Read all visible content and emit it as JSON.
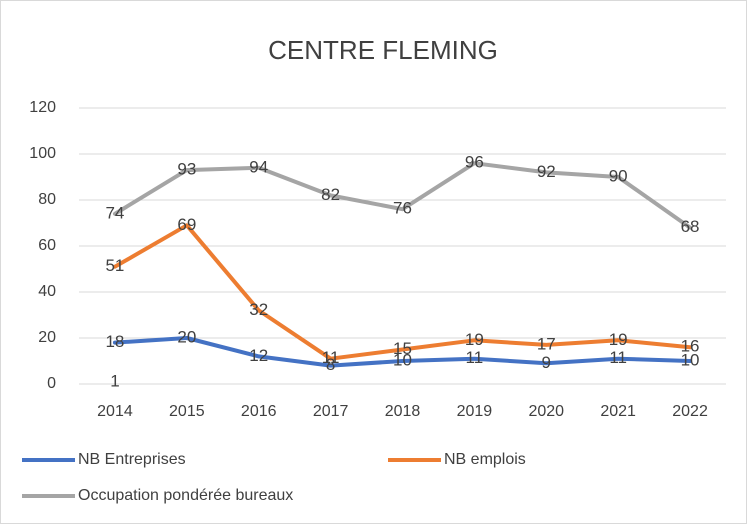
{
  "chart_data": {
    "type": "line",
    "title": "CENTRE FLEMING",
    "categories": [
      "2014",
      "2015",
      "2016",
      "2017",
      "2018",
      "2019",
      "2020",
      "2021",
      "2022"
    ],
    "series": [
      {
        "name": "NB Entreprises",
        "color": "#4472c4",
        "values": [
          18,
          20,
          12,
          8,
          10,
          11,
          9,
          11,
          10
        ]
      },
      {
        "name": "NB emplois",
        "color": "#ed7d31",
        "values": [
          51,
          69,
          32,
          11,
          15,
          19,
          17,
          19,
          16
        ]
      },
      {
        "name": "Occupation pondérée bureaux",
        "color": "#a5a5a5",
        "values": [
          74,
          93,
          94,
          82,
          76,
          96,
          92,
          90,
          68
        ]
      }
    ],
    "annotations": [
      "1"
    ],
    "ylim": [
      0,
      120
    ],
    "yticks": [
      0,
      20,
      40,
      60,
      80,
      100,
      120
    ],
    "grid": true,
    "legend": "bottom"
  }
}
